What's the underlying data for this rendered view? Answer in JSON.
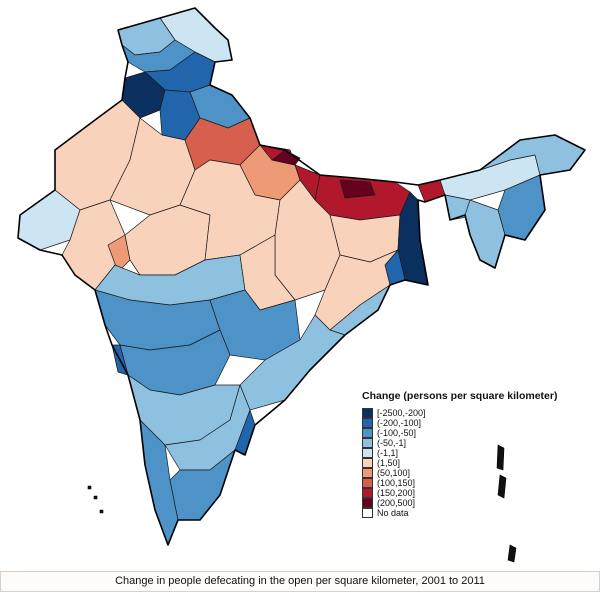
{
  "legend": {
    "title": "Change (persons per square kilometer)",
    "items": [
      {
        "label": "[-2500,-200]",
        "color": "#0b2f5e"
      },
      {
        "label": "(-200,-100]",
        "color": "#2166ac"
      },
      {
        "label": "(-100,-50]",
        "color": "#4d93c8"
      },
      {
        "label": "(-50,-1]",
        "color": "#8ec0e0"
      },
      {
        "label": "(-1,1]",
        "color": "#cde4f2"
      },
      {
        "label": "(1,50]",
        "color": "#f9d2bc"
      },
      {
        "label": "(50,100]",
        "color": "#ef9a76"
      },
      {
        "label": "(100,150]",
        "color": "#d6604d"
      },
      {
        "label": "(150,200]",
        "color": "#b2182b"
      },
      {
        "label": "(200,500]",
        "color": "#67001f"
      },
      {
        "label": "No data",
        "color": "#ffffff"
      }
    ]
  },
  "caption": "Change in people defecating in the open per square kilometer, 2001 to 2011"
}
